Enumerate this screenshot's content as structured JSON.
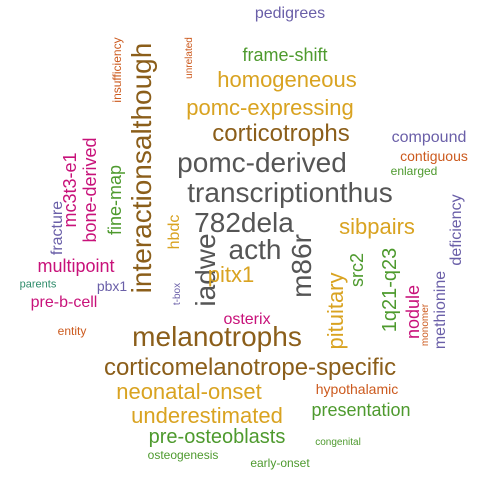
{
  "colors": {
    "dark_gray": "#555555",
    "brown": "#8B5E1A",
    "gold": "#D9A321",
    "green": "#4E9A2E",
    "magenta": "#C8127A",
    "purple": "#6A5FA8",
    "orange": "#CC5A1E",
    "teal": "#2E8B6A"
  },
  "words": [
    {
      "key": "pedigrees",
      "text": "pedigrees"
    },
    {
      "key": "insufficiency",
      "text": "insufficiency"
    },
    {
      "key": "unrelated",
      "text": "unrelated"
    },
    {
      "key": "frameshift",
      "text": "frame-shift"
    },
    {
      "key": "interactionsalthough",
      "text": "interactionsalthough"
    },
    {
      "key": "homogeneous",
      "text": "homogeneous"
    },
    {
      "key": "pomcexpressing",
      "text": "pomc-expressing"
    },
    {
      "key": "corticotrophs",
      "text": "corticotrophs"
    },
    {
      "key": "compound",
      "text": "compound"
    },
    {
      "key": "contiguous",
      "text": "contiguous"
    },
    {
      "key": "pomcderived",
      "text": "pomc-derived"
    },
    {
      "key": "enlarged",
      "text": "enlarged"
    },
    {
      "key": "bonederived",
      "text": "bone-derived"
    },
    {
      "key": "mc3t3e1",
      "text": "mc3t3-e1"
    },
    {
      "key": "finemap",
      "text": "fine-map"
    },
    {
      "key": "transcriptionthus",
      "text": "transcriptionthus"
    },
    {
      "key": "deficiency",
      "text": "deficiency"
    },
    {
      "key": "fracture",
      "text": "fracture"
    },
    {
      "key": "782dela",
      "text": "782dela"
    },
    {
      "key": "hbdc",
      "text": "hbdc"
    },
    {
      "key": "iadwe",
      "text": "iadwe"
    },
    {
      "key": "acth",
      "text": "acth"
    },
    {
      "key": "m86r",
      "text": "m86r"
    },
    {
      "key": "sibpairs",
      "text": "sibpairs"
    },
    {
      "key": "methionine",
      "text": "methionine"
    },
    {
      "key": "multipoint",
      "text": "multipoint"
    },
    {
      "key": "pitx1",
      "text": "pitx1"
    },
    {
      "key": "src2",
      "text": "src2"
    },
    {
      "key": "q21q23",
      "text": "1q21-q23"
    },
    {
      "key": "parents",
      "text": "parents"
    },
    {
      "key": "pbx1",
      "text": "pbx1"
    },
    {
      "key": "tbox",
      "text": "t-box"
    },
    {
      "key": "pituitary",
      "text": "pituitary"
    },
    {
      "key": "nodule",
      "text": "nodule"
    },
    {
      "key": "prebcell",
      "text": "pre-b-cell"
    },
    {
      "key": "osterix",
      "text": "osterix"
    },
    {
      "key": "monomer",
      "text": "monomer"
    },
    {
      "key": "entity",
      "text": "entity"
    },
    {
      "key": "melanotrophs",
      "text": "melanotrophs"
    },
    {
      "key": "corticomelanotrope",
      "text": "corticomelanotrope-specific"
    },
    {
      "key": "neonatalonset",
      "text": "neonatal-onset"
    },
    {
      "key": "hypothalamic",
      "text": "hypothalamic"
    },
    {
      "key": "underestimated",
      "text": "underestimated"
    },
    {
      "key": "presentation",
      "text": "presentation"
    },
    {
      "key": "preosteoblasts",
      "text": "pre-osteoblasts"
    },
    {
      "key": "congenital",
      "text": "congenital"
    },
    {
      "key": "osteogenesis",
      "text": "osteogenesis"
    },
    {
      "key": "earlyonset",
      "text": "early-onset"
    }
  ]
}
